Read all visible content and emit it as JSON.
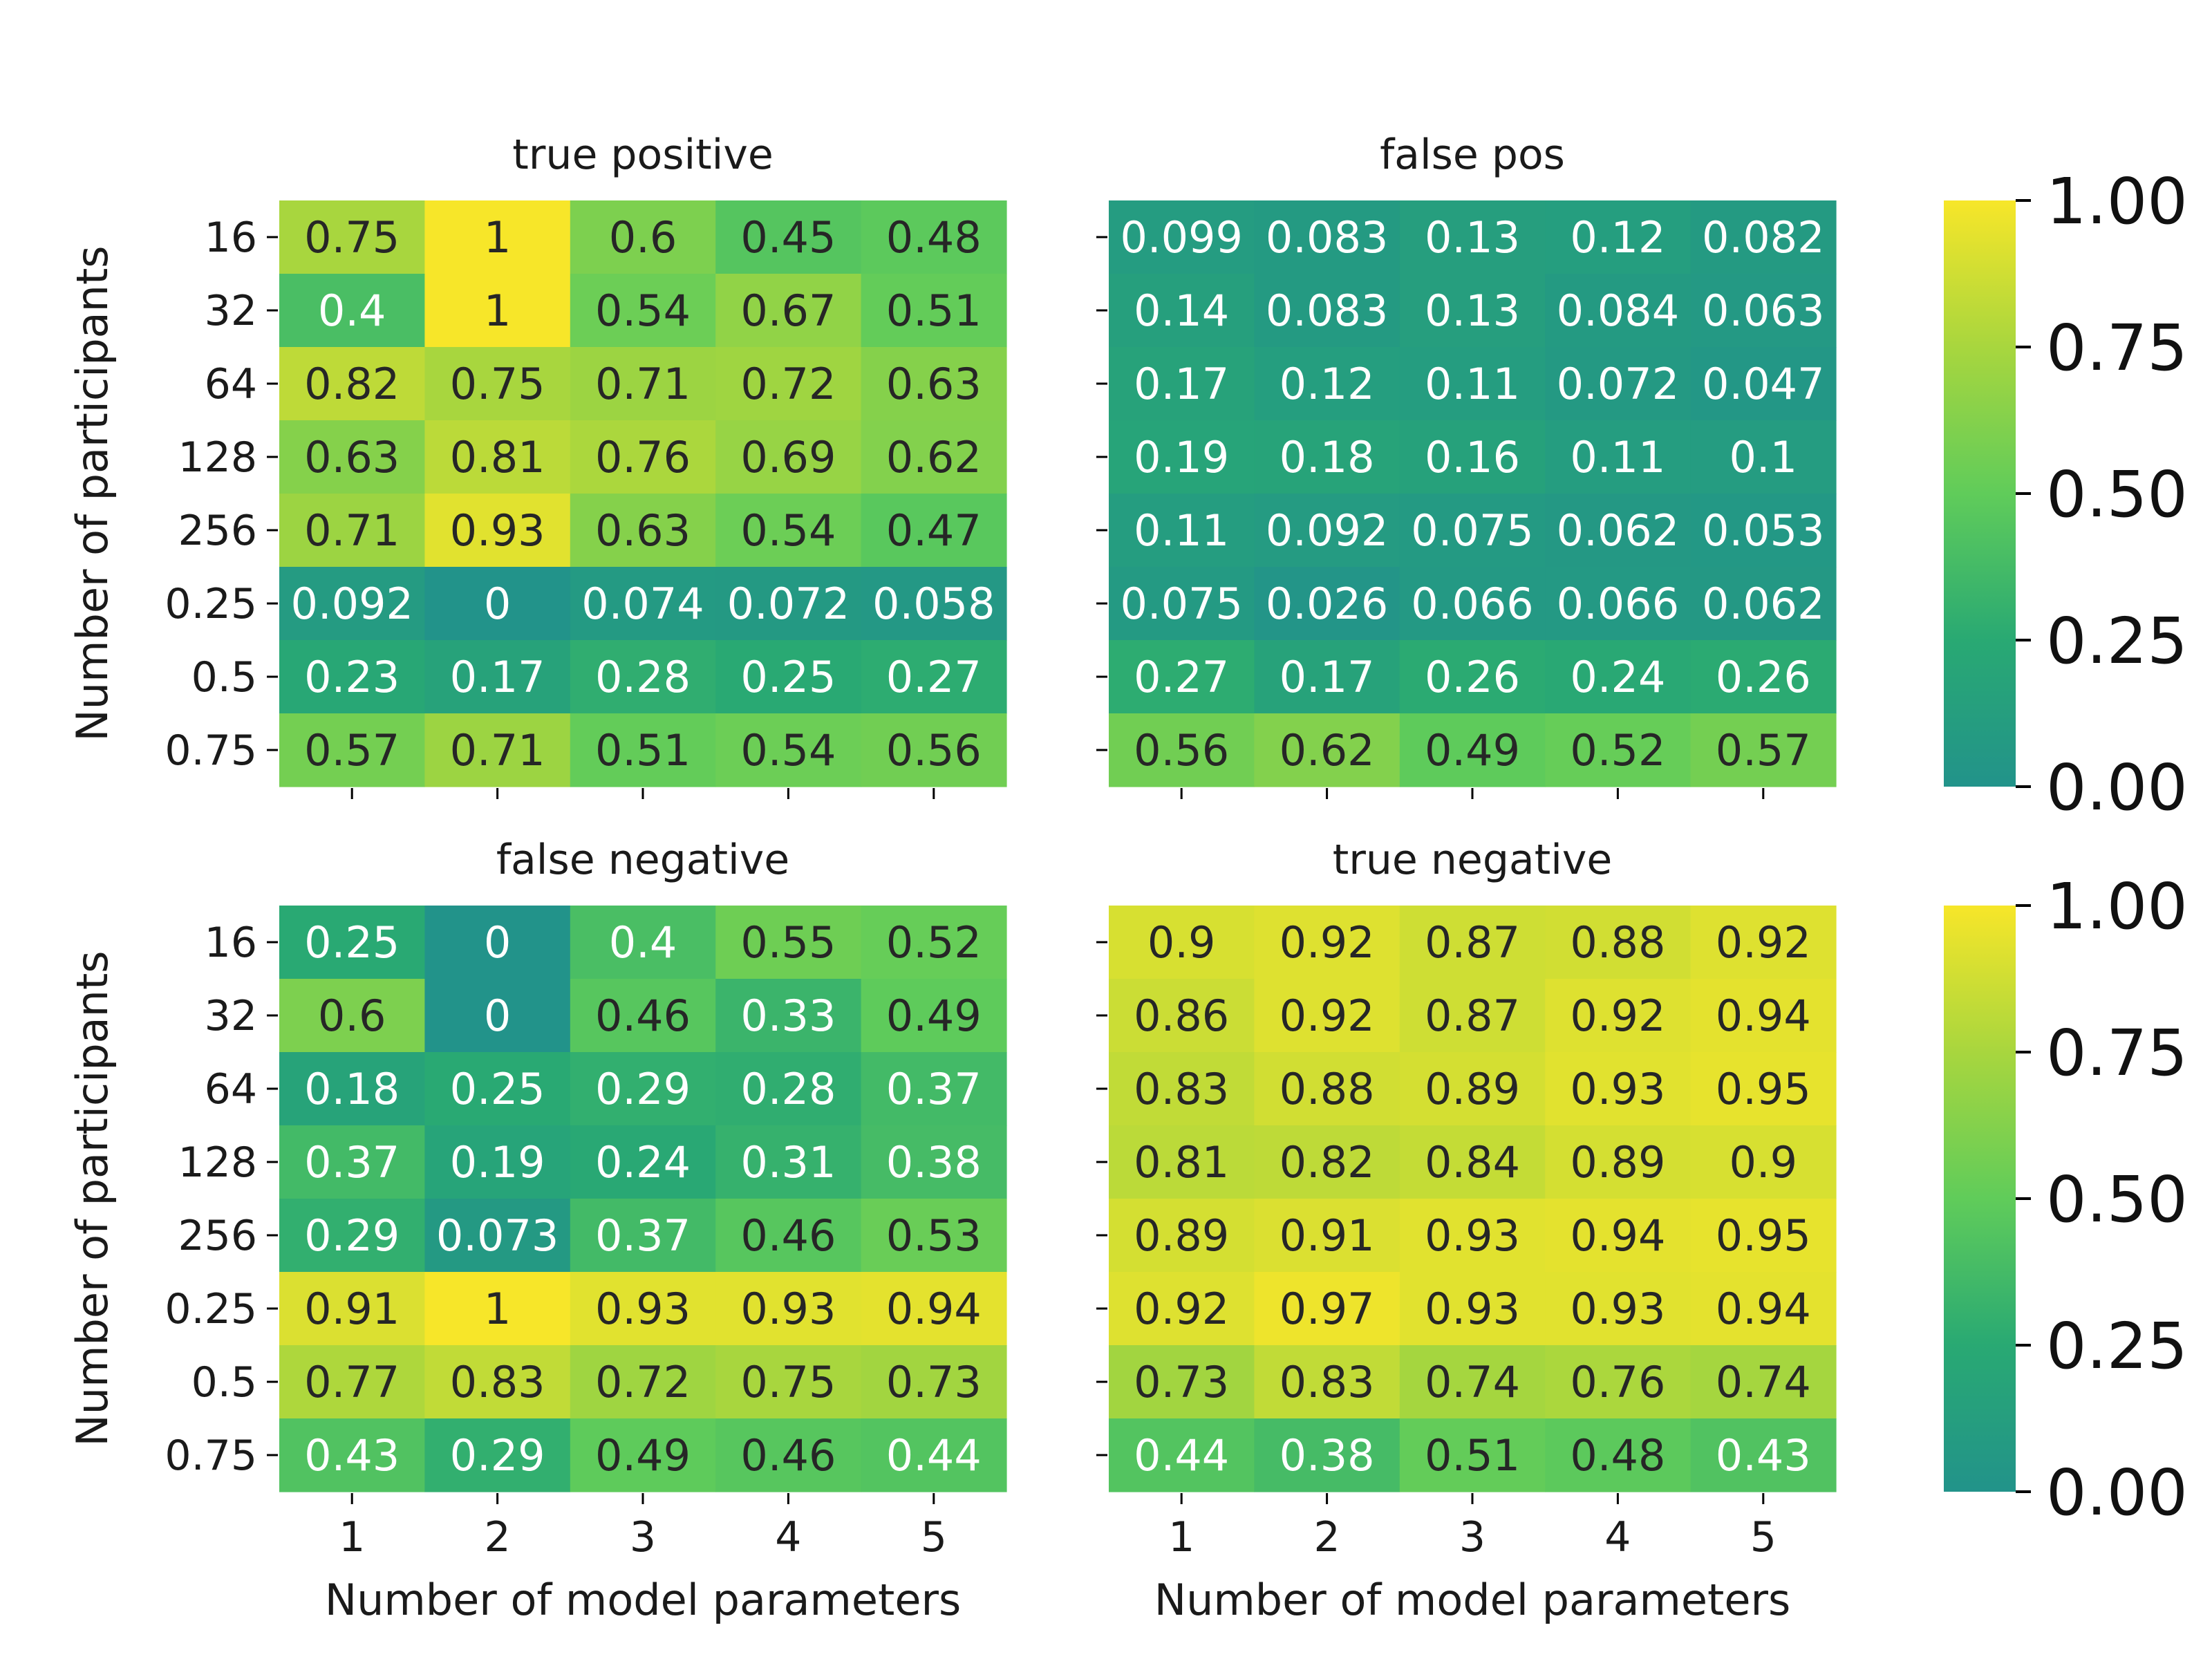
{
  "colors": {
    "cmap_low": "#22938a",
    "cmap_mid": "#60cc5a",
    "cmap_high": "#f7e629",
    "text_dark": "#262626",
    "text_light": "#ffffff",
    "axis": "#000000"
  },
  "chart_data": [
    {
      "type": "heatmap",
      "title": "true positive",
      "xlabel": "",
      "ylabel": "Number of participants",
      "x_categories": [
        "1",
        "2",
        "3",
        "4",
        "5"
      ],
      "y_categories": [
        "16",
        "32",
        "64",
        "128",
        "256",
        "0.25",
        "0.5",
        "0.75"
      ],
      "values": [
        [
          0.75,
          1,
          0.6,
          0.45,
          0.48
        ],
        [
          0.4,
          1,
          0.54,
          0.67,
          0.51
        ],
        [
          0.82,
          0.75,
          0.71,
          0.72,
          0.63
        ],
        [
          0.63,
          0.81,
          0.76,
          0.69,
          0.62
        ],
        [
          0.71,
          0.93,
          0.63,
          0.54,
          0.47
        ],
        [
          0.092,
          0,
          0.074,
          0.072,
          0.058
        ],
        [
          0.23,
          0.17,
          0.28,
          0.25,
          0.27
        ],
        [
          0.57,
          0.71,
          0.51,
          0.54,
          0.56
        ]
      ],
      "labels": [
        [
          "0.75",
          "1",
          "0.6",
          "0.45",
          "0.48"
        ],
        [
          "0.4",
          "1",
          "0.54",
          "0.67",
          "0.51"
        ],
        [
          "0.82",
          "0.75",
          "0.71",
          "0.72",
          "0.63"
        ],
        [
          "0.63",
          "0.81",
          "0.76",
          "0.69",
          "0.62"
        ],
        [
          "0.71",
          "0.93",
          "0.63",
          "0.54",
          "0.47"
        ],
        [
          "0.092",
          "0",
          "0.074",
          "0.072",
          "0.058"
        ],
        [
          "0.23",
          "0.17",
          "0.28",
          "0.25",
          "0.27"
        ],
        [
          "0.57",
          "0.71",
          "0.51",
          "0.54",
          "0.56"
        ]
      ],
      "vmin": 0,
      "vmax": 1,
      "show_y_ticklabels": true,
      "show_x_ticklabels": false
    },
    {
      "type": "heatmap",
      "title": "false pos",
      "xlabel": "",
      "ylabel": "",
      "x_categories": [
        "1",
        "2",
        "3",
        "4",
        "5"
      ],
      "y_categories": [
        "16",
        "32",
        "64",
        "128",
        "256",
        "0.25",
        "0.5",
        "0.75"
      ],
      "values": [
        [
          0.099,
          0.083,
          0.13,
          0.12,
          0.082
        ],
        [
          0.14,
          0.083,
          0.13,
          0.084,
          0.063
        ],
        [
          0.17,
          0.12,
          0.11,
          0.072,
          0.047
        ],
        [
          0.19,
          0.18,
          0.16,
          0.11,
          0.1
        ],
        [
          0.11,
          0.092,
          0.075,
          0.062,
          0.053
        ],
        [
          0.075,
          0.026,
          0.066,
          0.066,
          0.062
        ],
        [
          0.27,
          0.17,
          0.26,
          0.24,
          0.26
        ],
        [
          0.56,
          0.62,
          0.49,
          0.52,
          0.57
        ]
      ],
      "labels": [
        [
          "0.099",
          "0.083",
          "0.13",
          "0.12",
          "0.082"
        ],
        [
          "0.14",
          "0.083",
          "0.13",
          "0.084",
          "0.063"
        ],
        [
          "0.17",
          "0.12",
          "0.11",
          "0.072",
          "0.047"
        ],
        [
          "0.19",
          "0.18",
          "0.16",
          "0.11",
          "0.1"
        ],
        [
          "0.11",
          "0.092",
          "0.075",
          "0.062",
          "0.053"
        ],
        [
          "0.075",
          "0.026",
          "0.066",
          "0.066",
          "0.062"
        ],
        [
          "0.27",
          "0.17",
          "0.26",
          "0.24",
          "0.26"
        ],
        [
          "0.56",
          "0.62",
          "0.49",
          "0.52",
          "0.57"
        ]
      ],
      "vmin": 0,
      "vmax": 1,
      "show_y_ticklabels": false,
      "show_x_ticklabels": false
    },
    {
      "type": "heatmap",
      "title": "false negative",
      "xlabel": "Number of model parameters",
      "ylabel": "Number of participants",
      "x_categories": [
        "1",
        "2",
        "3",
        "4",
        "5"
      ],
      "y_categories": [
        "16",
        "32",
        "64",
        "128",
        "256",
        "0.25",
        "0.5",
        "0.75"
      ],
      "values": [
        [
          0.25,
          0,
          0.4,
          0.55,
          0.52
        ],
        [
          0.6,
          0,
          0.46,
          0.33,
          0.49
        ],
        [
          0.18,
          0.25,
          0.29,
          0.28,
          0.37
        ],
        [
          0.37,
          0.19,
          0.24,
          0.31,
          0.38
        ],
        [
          0.29,
          0.073,
          0.37,
          0.46,
          0.53
        ],
        [
          0.91,
          1,
          0.93,
          0.93,
          0.94
        ],
        [
          0.77,
          0.83,
          0.72,
          0.75,
          0.73
        ],
        [
          0.43,
          0.29,
          0.49,
          0.46,
          0.44
        ]
      ],
      "labels": [
        [
          "0.25",
          "0",
          "0.4",
          "0.55",
          "0.52"
        ],
        [
          "0.6",
          "0",
          "0.46",
          "0.33",
          "0.49"
        ],
        [
          "0.18",
          "0.25",
          "0.29",
          "0.28",
          "0.37"
        ],
        [
          "0.37",
          "0.19",
          "0.24",
          "0.31",
          "0.38"
        ],
        [
          "0.29",
          "0.073",
          "0.37",
          "0.46",
          "0.53"
        ],
        [
          "0.91",
          "1",
          "0.93",
          "0.93",
          "0.94"
        ],
        [
          "0.77",
          "0.83",
          "0.72",
          "0.75",
          "0.73"
        ],
        [
          "0.43",
          "0.29",
          "0.49",
          "0.46",
          "0.44"
        ]
      ],
      "vmin": 0,
      "vmax": 1,
      "show_y_ticklabels": true,
      "show_x_ticklabels": true
    },
    {
      "type": "heatmap",
      "title": "true negative",
      "xlabel": "Number of model parameters",
      "ylabel": "",
      "x_categories": [
        "1",
        "2",
        "3",
        "4",
        "5"
      ],
      "y_categories": [
        "16",
        "32",
        "64",
        "128",
        "256",
        "0.25",
        "0.5",
        "0.75"
      ],
      "values": [
        [
          0.9,
          0.92,
          0.87,
          0.88,
          0.92
        ],
        [
          0.86,
          0.92,
          0.87,
          0.92,
          0.94
        ],
        [
          0.83,
          0.88,
          0.89,
          0.93,
          0.95
        ],
        [
          0.81,
          0.82,
          0.84,
          0.89,
          0.9
        ],
        [
          0.89,
          0.91,
          0.93,
          0.94,
          0.95
        ],
        [
          0.92,
          0.97,
          0.93,
          0.93,
          0.94
        ],
        [
          0.73,
          0.83,
          0.74,
          0.76,
          0.74
        ],
        [
          0.44,
          0.38,
          0.51,
          0.48,
          0.43
        ]
      ],
      "labels": [
        [
          "0.9",
          "0.92",
          "0.87",
          "0.88",
          "0.92"
        ],
        [
          "0.86",
          "0.92",
          "0.87",
          "0.92",
          "0.94"
        ],
        [
          "0.83",
          "0.88",
          "0.89",
          "0.93",
          "0.95"
        ],
        [
          "0.81",
          "0.82",
          "0.84",
          "0.89",
          "0.9"
        ],
        [
          "0.89",
          "0.91",
          "0.93",
          "0.94",
          "0.95"
        ],
        [
          "0.92",
          "0.97",
          "0.93",
          "0.93",
          "0.94"
        ],
        [
          "0.73",
          "0.83",
          "0.74",
          "0.76",
          "0.74"
        ],
        [
          "0.44",
          "0.38",
          "0.51",
          "0.48",
          "0.43"
        ]
      ],
      "vmin": 0,
      "vmax": 1,
      "show_y_ticklabels": false,
      "show_x_ticklabels": true
    }
  ],
  "colorbars": [
    {
      "ticks": [
        "0.00",
        "0.25",
        "0.50",
        "0.75",
        "1.00"
      ],
      "tick_values": [
        0,
        0.25,
        0.5,
        0.75,
        1
      ]
    },
    {
      "ticks": [
        "0.00",
        "0.25",
        "0.50",
        "0.75",
        "1.00"
      ],
      "tick_values": [
        0,
        0.25,
        0.5,
        0.75,
        1
      ]
    }
  ]
}
